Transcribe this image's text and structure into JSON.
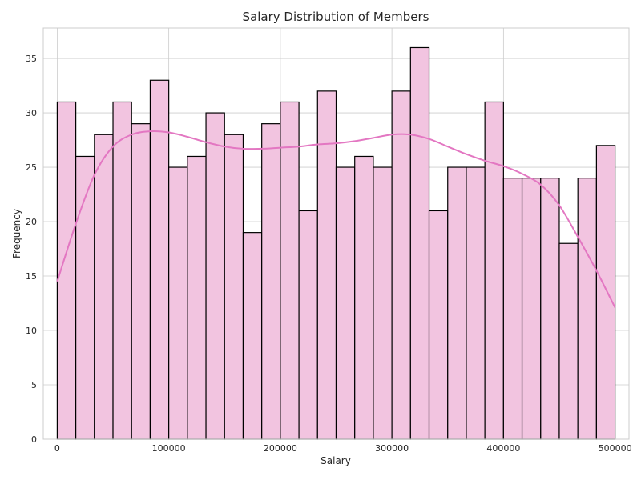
{
  "chart_data": {
    "type": "bar",
    "title": "Salary Distribution of Members",
    "xlabel": "Salary",
    "ylabel": "Frequency",
    "xlim": [
      -12500,
      512500
    ],
    "ylim": [
      0,
      37.8
    ],
    "xticks": [
      0,
      100000,
      200000,
      300000,
      400000,
      500000
    ],
    "xtick_labels": [
      "0",
      "100000",
      "200000",
      "300000",
      "400000",
      "500000"
    ],
    "yticks": [
      0,
      5,
      10,
      15,
      20,
      25,
      30,
      35
    ],
    "ytick_labels": [
      "0",
      "5",
      "10",
      "15",
      "20",
      "25",
      "30",
      "35"
    ],
    "grid": true,
    "bar_color": "#f2c4e0",
    "kde_color": "#e377c2",
    "bins": {
      "start": 0,
      "end": 500000,
      "counts": [
        31,
        26,
        28,
        31,
        29,
        33,
        25,
        26,
        30,
        28,
        19,
        29,
        31,
        21,
        32,
        25,
        26,
        25,
        32,
        36,
        21,
        25,
        25,
        31,
        24,
        24,
        24,
        18,
        24,
        27
      ]
    },
    "kde": {
      "x": [
        0,
        16667,
        33333,
        50000,
        66667,
        83333,
        100000,
        116667,
        133333,
        150000,
        166667,
        183333,
        200000,
        216667,
        233333,
        250000,
        266667,
        283333,
        300000,
        316667,
        333333,
        350000,
        366667,
        383333,
        400000,
        416667,
        433333,
        450000,
        466667,
        483333,
        500000
      ],
      "y": [
        14.5,
        19.8,
        24.3,
        26.9,
        28.0,
        28.3,
        28.2,
        27.8,
        27.3,
        26.9,
        26.7,
        26.7,
        26.8,
        26.9,
        27.1,
        27.2,
        27.4,
        27.7,
        28.0,
        28.0,
        27.6,
        26.9,
        26.2,
        25.6,
        25.1,
        24.4,
        23.4,
        21.5,
        18.6,
        15.5,
        12.1
      ]
    }
  }
}
